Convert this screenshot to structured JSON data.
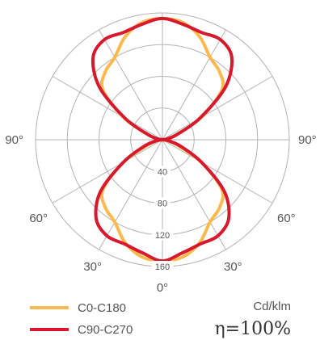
{
  "chart_data": {
    "type": "polar-line",
    "unit": "Cd/klm",
    "efficiency": "η=100%",
    "r_max": 160,
    "radial_ticks": [
      40,
      80,
      120,
      160
    ],
    "radial_tick_labels": [
      "40",
      "80",
      "120",
      "160"
    ],
    "angle_labels": {
      "left": [
        "90°",
        "60°",
        "30°"
      ],
      "bottom": "0°",
      "right": [
        "90°",
        "60°",
        "30°"
      ]
    },
    "angles_deg": [
      0,
      10,
      20,
      30,
      40,
      50,
      60,
      70,
      80,
      90
    ],
    "series": [
      {
        "name": "C0-C180",
        "color": "#FDB94E",
        "values_bottom": [
          153,
          150,
          138,
          120,
          112,
          98,
          57,
          20,
          6,
          0
        ],
        "values_top": [
          153,
          150,
          138,
          120,
          112,
          98,
          57,
          20,
          6,
          0
        ]
      },
      {
        "name": "C90-C270",
        "color": "#D7192D",
        "values_bottom": [
          153,
          145,
          140,
          140,
          130,
          102,
          57,
          25,
          8,
          0
        ],
        "values_top": [
          153,
          148,
          144,
          146,
          136,
          104,
          55,
          20,
          6,
          0
        ]
      }
    ]
  }
}
